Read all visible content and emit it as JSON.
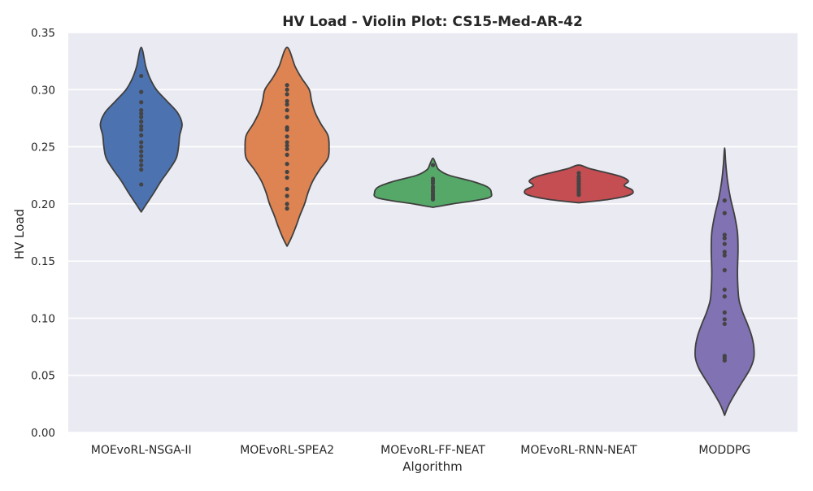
{
  "chart_data": {
    "type": "violin",
    "title": "HV Load - Violin Plot: CS15-Med-AR-42",
    "xlabel": "Algorithm",
    "ylabel": "HV Load",
    "ylim": [
      0.0,
      0.35
    ],
    "yticks": [
      "0.00",
      "0.05",
      "0.10",
      "0.15",
      "0.20",
      "0.25",
      "0.30",
      "0.35"
    ],
    "grid": true,
    "legend": "none",
    "categories": [
      "MOEvoRL-NSGA-II",
      "MOEvoRL-SPEA2",
      "MOEvoRL-FF-NEAT",
      "MOEvoRL-RNN-NEAT",
      "MODDPG"
    ],
    "colors": [
      "#4c72b0",
      "#dd8452",
      "#55a868",
      "#c44e52",
      "#8172b3"
    ],
    "background_color": "#eaeaf2",
    "series": [
      {
        "category": "MOEvoRL-NSGA-II",
        "range": [
          0.193,
          0.337
        ],
        "points": [
          0.312,
          0.298,
          0.289,
          0.282,
          0.279,
          0.276,
          0.272,
          0.268,
          0.265,
          0.26,
          0.254,
          0.25,
          0.246,
          0.242,
          0.238,
          0.234,
          0.23,
          0.217
        ],
        "profile": [
          [
            0.193,
            0.0
          ],
          [
            0.2,
            0.09
          ],
          [
            0.21,
            0.22
          ],
          [
            0.22,
            0.34
          ],
          [
            0.23,
            0.48
          ],
          [
            0.24,
            0.6
          ],
          [
            0.25,
            0.64
          ],
          [
            0.26,
            0.66
          ],
          [
            0.27,
            0.7
          ],
          [
            0.28,
            0.62
          ],
          [
            0.29,
            0.44
          ],
          [
            0.3,
            0.26
          ],
          [
            0.31,
            0.15
          ],
          [
            0.32,
            0.08
          ],
          [
            0.337,
            0.0
          ]
        ]
      },
      {
        "category": "MOEvoRL-SPEA2",
        "range": [
          0.163,
          0.337
        ],
        "points": [
          0.304,
          0.3,
          0.296,
          0.29,
          0.287,
          0.282,
          0.276,
          0.267,
          0.265,
          0.259,
          0.254,
          0.251,
          0.248,
          0.243,
          0.235,
          0.228,
          0.223,
          0.213,
          0.207,
          0.2,
          0.196
        ],
        "profile": [
          [
            0.163,
            0.0
          ],
          [
            0.17,
            0.07
          ],
          [
            0.18,
            0.15
          ],
          [
            0.19,
            0.22
          ],
          [
            0.2,
            0.3
          ],
          [
            0.21,
            0.36
          ],
          [
            0.22,
            0.44
          ],
          [
            0.23,
            0.56
          ],
          [
            0.24,
            0.7
          ],
          [
            0.25,
            0.72
          ],
          [
            0.26,
            0.7
          ],
          [
            0.27,
            0.58
          ],
          [
            0.28,
            0.48
          ],
          [
            0.29,
            0.42
          ],
          [
            0.3,
            0.38
          ],
          [
            0.31,
            0.25
          ],
          [
            0.32,
            0.14
          ],
          [
            0.337,
            0.0
          ]
        ]
      },
      {
        "category": "MOEvoRL-FF-NEAT",
        "range": [
          0.197,
          0.24
        ],
        "points": [
          0.234,
          0.222,
          0.22,
          0.218,
          0.215,
          0.213,
          0.211,
          0.209,
          0.207,
          0.205,
          0.204
        ],
        "profile": [
          [
            0.197,
            0.0
          ],
          [
            0.2,
            0.33
          ],
          [
            0.205,
            0.93
          ],
          [
            0.21,
            1.0
          ],
          [
            0.215,
            0.93
          ],
          [
            0.22,
            0.66
          ],
          [
            0.225,
            0.28
          ],
          [
            0.23,
            0.1
          ],
          [
            0.235,
            0.05
          ],
          [
            0.24,
            0.0
          ]
        ]
      },
      {
        "category": "MOEvoRL-RNN-NEAT",
        "range": [
          0.201,
          0.234
        ],
        "points": [
          0.227,
          0.224,
          0.222,
          0.22,
          0.218,
          0.216,
          0.214,
          0.212,
          0.21,
          0.208
        ],
        "profile": [
          [
            0.201,
            0.0
          ],
          [
            0.204,
            0.52
          ],
          [
            0.208,
            0.88
          ],
          [
            0.212,
            0.92
          ],
          [
            0.216,
            0.78
          ],
          [
            0.22,
            0.85
          ],
          [
            0.224,
            0.72
          ],
          [
            0.228,
            0.42
          ],
          [
            0.231,
            0.18
          ],
          [
            0.234,
            0.0
          ]
        ]
      },
      {
        "category": "MODDPG",
        "range": [
          0.015,
          0.249
        ],
        "points": [
          0.203,
          0.192,
          0.173,
          0.17,
          0.165,
          0.158,
          0.155,
          0.142,
          0.125,
          0.119,
          0.105,
          0.099,
          0.095,
          0.067,
          0.065,
          0.063
        ],
        "profile": [
          [
            0.015,
            0.0
          ],
          [
            0.025,
            0.08
          ],
          [
            0.04,
            0.25
          ],
          [
            0.055,
            0.43
          ],
          [
            0.065,
            0.5
          ],
          [
            0.075,
            0.5
          ],
          [
            0.085,
            0.46
          ],
          [
            0.095,
            0.39
          ],
          [
            0.105,
            0.31
          ],
          [
            0.115,
            0.25
          ],
          [
            0.125,
            0.23
          ],
          [
            0.14,
            0.22
          ],
          [
            0.16,
            0.23
          ],
          [
            0.175,
            0.22
          ],
          [
            0.19,
            0.17
          ],
          [
            0.205,
            0.1
          ],
          [
            0.22,
            0.05
          ],
          [
            0.235,
            0.02
          ],
          [
            0.249,
            0.0
          ]
        ]
      }
    ]
  }
}
